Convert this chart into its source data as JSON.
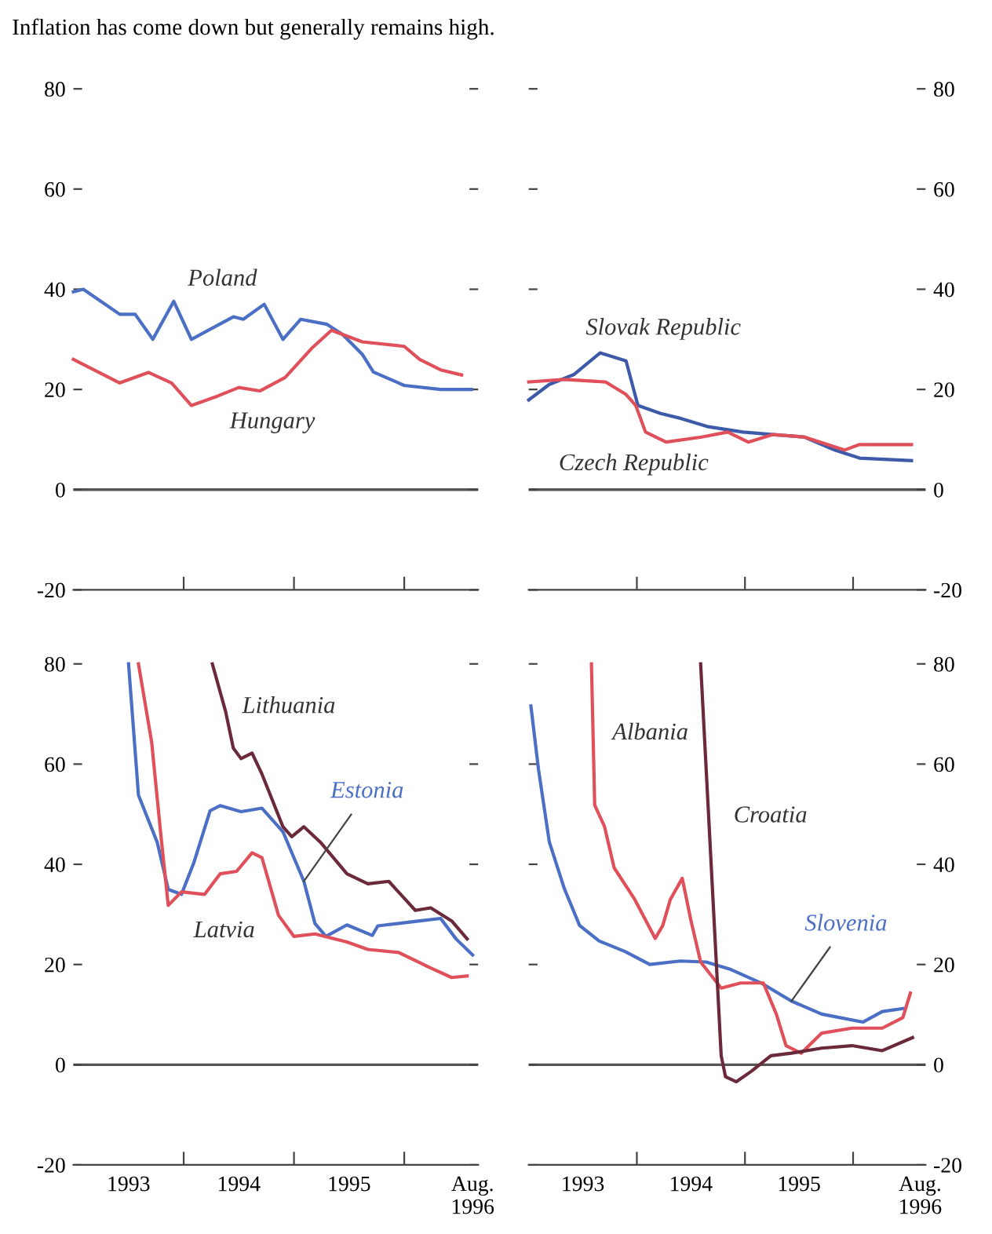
{
  "chart_data": [
    {
      "type": "line",
      "title": "Inflation has come down but generally remains high.",
      "xlim": [
        1993.0,
        1996.67
      ],
      "ylim": [
        -20,
        80
      ],
      "yticks": [
        -20,
        0,
        20,
        40,
        60,
        80
      ],
      "tick_labels": "y",
      "xticks": [
        {
          "value": 1994,
          "label": null
        },
        {
          "value": 1995,
          "label": null
        },
        {
          "value": 1996,
          "label": null
        }
      ],
      "ref_lines": [
        {
          "axis": "y",
          "value": 0,
          "label": null,
          "color": "#555555"
        }
      ],
      "series": [
        {
          "name": "Poland",
          "color": "#4a6fc4",
          "x": [
            1993.0,
            1993.09,
            1993.42,
            1993.56,
            1993.72,
            1993.91,
            1994.07,
            1994.45,
            1994.54,
            1994.73,
            1994.9,
            1995.06,
            1995.3,
            1995.44,
            1995.62,
            1995.72,
            1996.0,
            1996.33,
            1996.61
          ],
          "values": [
            39.5,
            40,
            35,
            35,
            30,
            37.6,
            30,
            34.5,
            34,
            37,
            30,
            34,
            33,
            31,
            27,
            23.5,
            20.8,
            20,
            20
          ]
        },
        {
          "name": "Hungary",
          "color": "#e0505a",
          "x": [
            1993.0,
            1993.42,
            1993.68,
            1993.89,
            1994.07,
            1994.31,
            1994.5,
            1994.69,
            1994.92,
            1995.16,
            1995.34,
            1995.62,
            1996.0,
            1996.14,
            1996.33,
            1996.52
          ],
          "values": [
            26,
            21.3,
            23.4,
            21.3,
            16.8,
            18.7,
            20.4,
            19.7,
            22.4,
            28.2,
            31.8,
            29.5,
            28.6,
            26,
            23.9,
            22.9
          ]
        }
      ]
    },
    {
      "type": "line",
      "xlim": [
        1993.0,
        1996.67
      ],
      "ylim": [
        -20,
        80
      ],
      "yticks": [
        -20,
        0,
        20,
        40,
        60,
        80
      ],
      "tick_labels": "y",
      "xticks": [
        {
          "value": 1994,
          "label": null
        },
        {
          "value": 1995,
          "label": null
        },
        {
          "value": 1996,
          "label": null
        }
      ],
      "ref_lines": [
        {
          "axis": "y",
          "value": 0,
          "label": null,
          "color": "#555555"
        }
      ],
      "series": [
        {
          "name": "Slovak Republic",
          "color": "#3d5aa8",
          "x": [
            1993.0,
            1993.19,
            1993.42,
            1993.66,
            1993.9,
            1994.01,
            1994.22,
            1994.41,
            1994.65,
            1994.98,
            1995.26,
            1995.55,
            1995.83,
            1996.06,
            1996.54
          ],
          "values": [
            17.9,
            21,
            23,
            27.3,
            25.7,
            16.8,
            15.2,
            14.2,
            12.6,
            11.5,
            11,
            10.5,
            7.9,
            6.3,
            5.8
          ]
        },
        {
          "name": "Czech Republic",
          "color": "#e0505a",
          "x": [
            1993.0,
            1993.33,
            1993.71,
            1993.9,
            1993.99,
            1994.08,
            1994.27,
            1994.6,
            1994.84,
            1995.03,
            1995.26,
            1995.55,
            1995.92,
            1996.06,
            1996.54
          ],
          "values": [
            21.5,
            22,
            21.5,
            19,
            16.8,
            11.5,
            9.5,
            10.5,
            11.5,
            9.5,
            11,
            10.5,
            7.9,
            9,
            9
          ]
        }
      ]
    },
    {
      "type": "line",
      "xlim": [
        1993.0,
        1996.67
      ],
      "ylim": [
        -20,
        80
      ],
      "yticks": [
        -20,
        0,
        20,
        40,
        60,
        80
      ],
      "xticks": [
        {
          "value": 1993.5,
          "label": "1993"
        },
        {
          "value": 1994,
          "label": null
        },
        {
          "value": 1994.5,
          "label": "1994"
        },
        {
          "value": 1995,
          "label": null
        },
        {
          "value": 1995.5,
          "label": "1995"
        },
        {
          "value": 1996,
          "label": null
        },
        {
          "value": 1996.62,
          "label": "Aug.\n1996"
        }
      ],
      "ref_lines": [
        {
          "axis": "y",
          "value": 0,
          "label": null,
          "color": "#555555"
        }
      ],
      "series": [
        {
          "name": "Lithuania",
          "color": "#6b2a3a",
          "x": [
            1994.26,
            1994.38,
            1994.45,
            1994.52,
            1994.62,
            1994.71,
            1994.9,
            1994.98,
            1995.09,
            1995.24,
            1995.48,
            1995.67,
            1995.86,
            1996.1,
            1996.24,
            1996.43,
            1996.57
          ],
          "values": [
            80,
            70.5,
            63.2,
            61.1,
            62.2,
            58,
            47.5,
            45.5,
            47.5,
            44.4,
            38.1,
            36.1,
            36.6,
            30.8,
            31.3,
            28.7,
            25.1
          ]
        },
        {
          "name": "Estonia",
          "color": "#4a6fc4",
          "x": [
            1993.5,
            1993.59,
            1993.76,
            1993.86,
            1993.98,
            1994.09,
            1994.24,
            1994.33,
            1994.52,
            1994.71,
            1994.9,
            1995.09,
            1995.19,
            1995.29,
            1995.48,
            1995.71,
            1995.76,
            1996.14,
            1996.33,
            1996.47,
            1996.62
          ],
          "values": [
            80,
            53.8,
            44.4,
            35,
            34,
            40.2,
            50.7,
            51.7,
            50.5,
            51.2,
            46.5,
            36.6,
            28.2,
            25.6,
            27.9,
            25.8,
            27.7,
            28.7,
            29.2,
            25.1,
            21.9
          ]
        },
        {
          "name": "Latvia",
          "color": "#e0505a",
          "x": [
            1993.59,
            1993.71,
            1993.79,
            1993.86,
            1993.98,
            1994.19,
            1994.33,
            1994.48,
            1994.62,
            1994.71,
            1994.86,
            1995.0,
            1995.19,
            1995.48,
            1995.67,
            1995.95,
            1996.24,
            1996.43,
            1996.57
          ],
          "values": [
            80,
            64.3,
            46.5,
            31.8,
            34.5,
            34,
            38.1,
            38.6,
            42.3,
            41.3,
            29.8,
            25.6,
            26.1,
            24.5,
            23,
            22.4,
            19.3,
            17.4,
            17.7
          ]
        }
      ]
    },
    {
      "type": "line",
      "xlim": [
        1993.0,
        1996.67
      ],
      "ylim": [
        -20,
        80
      ],
      "yticks": [
        -20,
        0,
        20,
        40,
        60,
        80
      ],
      "xticks": [
        {
          "value": 1993.5,
          "label": "1993"
        },
        {
          "value": 1994,
          "label": null
        },
        {
          "value": 1994.5,
          "label": "1994"
        },
        {
          "value": 1995,
          "label": null
        },
        {
          "value": 1995.5,
          "label": "1995"
        },
        {
          "value": 1996,
          "label": null
        },
        {
          "value": 1996.62,
          "label": "Aug.\n1996"
        }
      ],
      "ref_lines": [
        {
          "axis": "y",
          "value": 0,
          "label": null,
          "color": "#555555"
        }
      ],
      "series": [
        {
          "name": "Slovenia",
          "color": "#4a6fc4",
          "x": [
            1993.02,
            1993.09,
            1993.19,
            1993.33,
            1993.47,
            1993.65,
            1993.89,
            1994.12,
            1994.4,
            1994.64,
            1994.87,
            1995.15,
            1995.43,
            1995.71,
            1996.09,
            1996.27,
            1996.46
          ],
          "values": [
            71.6,
            59,
            44.5,
            35.1,
            27.8,
            24.7,
            22.6,
            20,
            20.7,
            20.5,
            19,
            16.3,
            12.7,
            10.1,
            8.5,
            10.6,
            11.2
          ]
        },
        {
          "name": "Albania",
          "color": "#e0505a",
          "x": [
            1993.58,
            1993.61,
            1993.7,
            1993.79,
            1993.98,
            1994.17,
            1994.24,
            1994.31,
            1994.42,
            1994.5,
            1994.59,
            1994.78,
            1994.96,
            1995.17,
            1995.29,
            1995.38,
            1995.52,
            1995.71,
            1995.99,
            1996.27,
            1996.46,
            1996.53
          ],
          "values": [
            80,
            51.8,
            47.6,
            39.3,
            33,
            25.2,
            27.8,
            33,
            37.2,
            28.8,
            20.5,
            15.3,
            16.3,
            16.3,
            10.1,
            3.8,
            2.3,
            6.3,
            7.3,
            7.3,
            9.4,
            14.3
          ]
        },
        {
          "name": "Croatia",
          "color": "#6b2a3a",
          "x": [
            1994.59,
            1994.78,
            1994.82,
            1994.92,
            1995.06,
            1995.24,
            1995.43,
            1995.71,
            1995.99,
            1996.27,
            1996.55
          ],
          "values": [
            80,
            1.8,
            -2.4,
            -3.4,
            -1.3,
            1.8,
            2.3,
            3.3,
            3.8,
            2.8,
            5.4
          ]
        }
      ]
    }
  ]
}
